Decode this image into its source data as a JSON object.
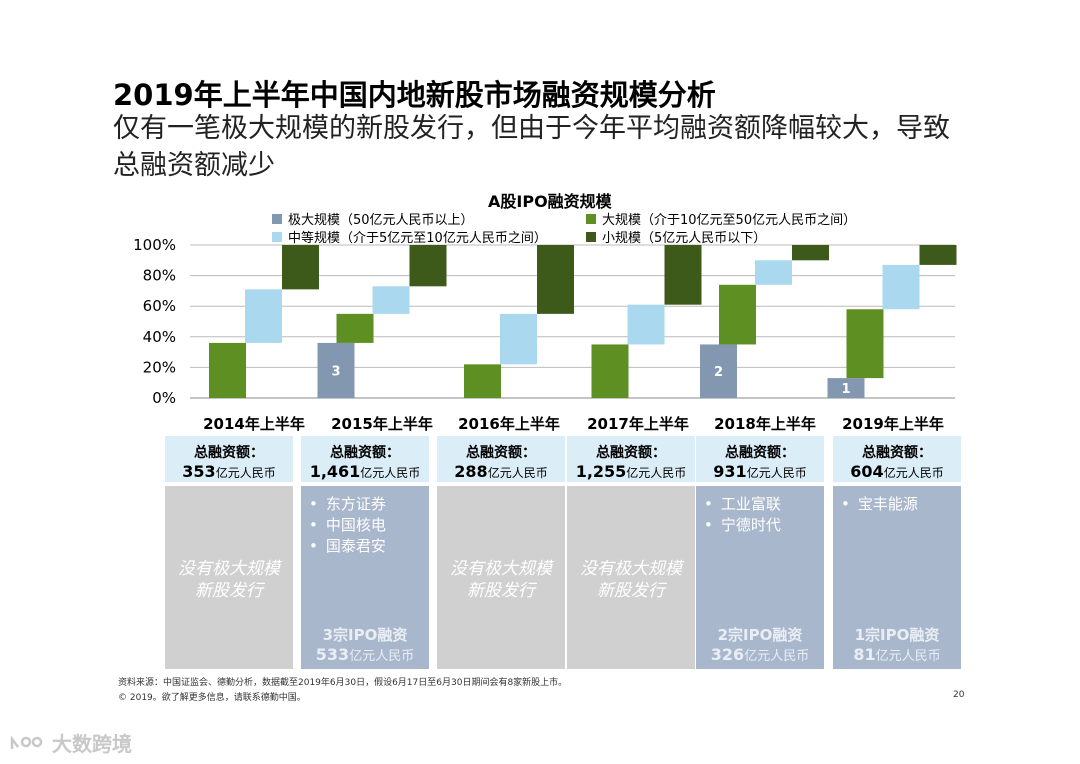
{
  "header": {
    "title": "2019年上半年中国内地新股市场融资规模分析",
    "subtitle": "仅有一笔极大规模的新股发行，但由于今年平均融资额降幅较大，导致总融资额减少"
  },
  "colors": {
    "extra_large": "#8497b0",
    "large": "#5e8f22",
    "medium": "#a9d8ef",
    "small": "#3d5a1a",
    "total_bg": "#dbeef8",
    "detail_none": "#d0d0d0",
    "detail_has": "#a9b7cc"
  },
  "chart_data": {
    "type": "bar",
    "subtype": "stacked-waterfall",
    "title": "A股IPO融资规模",
    "categories": [
      "2014年上半年",
      "2015年上半年",
      "2016年上半年",
      "2017年上半年",
      "2018年上半年",
      "2019年上半年"
    ],
    "series": [
      {
        "key": "extra_large",
        "name": "极大规模（50亿元人民币以上）",
        "values": [
          0,
          36,
          0,
          0,
          35,
          13
        ],
        "labels": [
          "",
          "3",
          "",
          "",
          "2",
          "1"
        ]
      },
      {
        "key": "large",
        "name": "大规模（介于10亿元至50亿元人民币之间）",
        "values": [
          36,
          19,
          22,
          35,
          39,
          45
        ]
      },
      {
        "key": "medium",
        "name": "中等规模（介于5亿元至10亿元人民币之间）",
        "values": [
          35,
          18,
          33,
          26,
          16,
          29
        ]
      },
      {
        "key": "small",
        "name": "小规模（5亿元人民币以下）",
        "values": [
          29,
          27,
          45,
          39,
          10,
          13
        ]
      }
    ],
    "ylim": [
      0,
      100
    ],
    "yticks": [
      "0%",
      "20%",
      "40%",
      "60%",
      "80%",
      "100%"
    ],
    "ytick_values": [
      0,
      20,
      40,
      60,
      80,
      100
    ],
    "grid": true,
    "legend": "top"
  },
  "totals": {
    "label": "总融资额：",
    "unit": "亿元人民币",
    "values": [
      "353",
      "1,461",
      "288",
      "1,255",
      "931",
      "604"
    ]
  },
  "details": [
    {
      "none": true,
      "text_line1": "没有极大规模",
      "text_line2": "新股发行"
    },
    {
      "none": false,
      "items": [
        "东方证券",
        "中国核电",
        "国泰君安"
      ],
      "summary_line1": "3宗IPO融资",
      "summary_value": "533",
      "summary_unit": "亿元人民币"
    },
    {
      "none": true,
      "text_line1": "没有极大规模",
      "text_line2": "新股发行"
    },
    {
      "none": true,
      "text_line1": "没有极大规模",
      "text_line2": "新股发行"
    },
    {
      "none": false,
      "items": [
        "工业富联",
        "宁德时代"
      ],
      "summary_line1": "2宗IPO融资",
      "summary_value": "326",
      "summary_unit": "亿元人民币"
    },
    {
      "none": false,
      "items": [
        "宝丰能源"
      ],
      "summary_line1": "1宗IPO融资",
      "summary_value": "81",
      "summary_unit": "亿元人民币"
    }
  ],
  "footer": {
    "source": "资料来源：中国证监会、德勤分析，数据截至2019年6月30日，假设6月17日至6月30日期间会有8家新股上市。",
    "copyright": "© 2019。欲了解更多信息，请联系德勤中国。",
    "page_number": "20"
  },
  "watermark": {
    "text": "大数跨境"
  }
}
